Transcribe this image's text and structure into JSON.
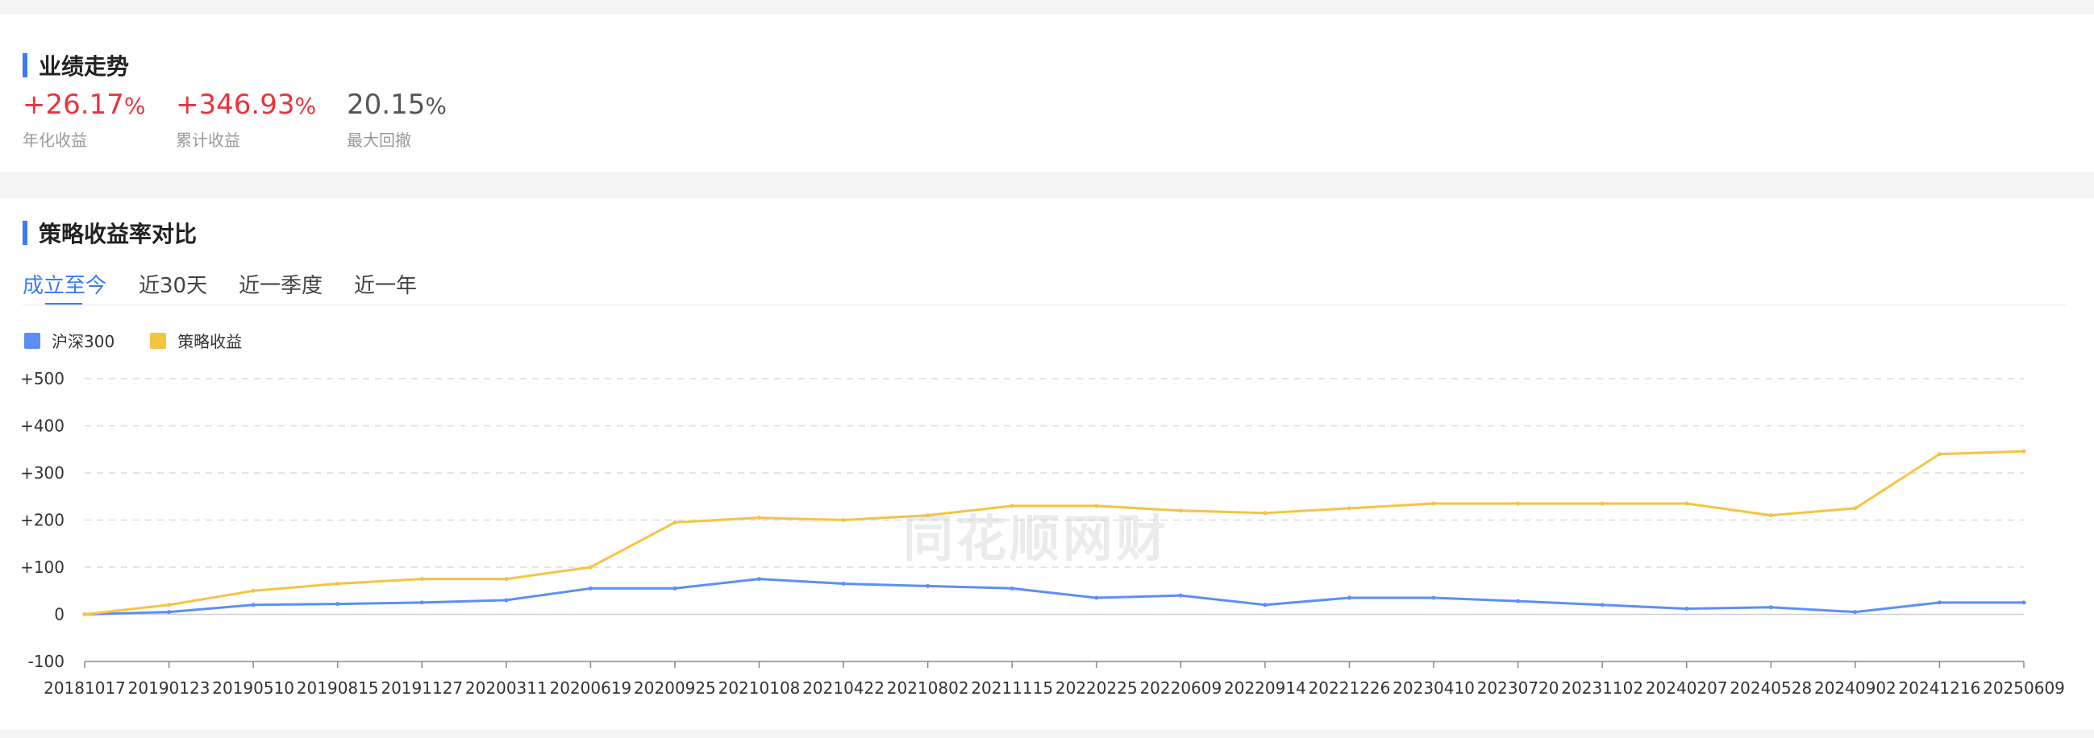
{
  "performance": {
    "title": "业绩走势",
    "stats": [
      {
        "value": "+26.17",
        "unit": "%",
        "label": "年化收益"
      },
      {
        "value": "+346.93",
        "unit": "%",
        "label": "累计收益"
      },
      {
        "value": "20.15",
        "unit": "%",
        "label": "最大回撤"
      }
    ]
  },
  "comparison": {
    "title": "策略收益率对比",
    "tabs": [
      "成立至今",
      "近30天",
      "近一季度",
      "近一年"
    ],
    "active_tab": 0,
    "watermark": "同花顺网财"
  },
  "colors": {
    "accent": "#3b7cf6",
    "positive": "#e8343c",
    "hs300": "#5b8ff9",
    "strategy": "#f6c343"
  },
  "chart_data": {
    "type": "line",
    "legend_position": "top-left",
    "grid": true,
    "ylim": [
      -100,
      500
    ],
    "yticks": [
      "+500",
      "+400",
      "+300",
      "+200",
      "+100",
      "0",
      "-100"
    ],
    "xtick_labels": [
      "20181017",
      "20190123",
      "20190510",
      "20190815",
      "20191127",
      "20200311",
      "20200619",
      "20200925",
      "20210108",
      "20210422",
      "20210802",
      "20211115",
      "20220225",
      "20220609",
      "20220914",
      "20221226",
      "20230410",
      "20230720",
      "20231102",
      "20240207",
      "20240528",
      "20240902",
      "20241216",
      "20250609"
    ],
    "x": [
      "20181017",
      "20190123",
      "20190510",
      "20190815",
      "20191127",
      "20200311",
      "20200619",
      "20200925",
      "20210108",
      "20210422",
      "20210802",
      "20211115",
      "20220225",
      "20220609",
      "20220914",
      "20221226",
      "20230410",
      "20230720",
      "20231102",
      "20240207",
      "20240528",
      "20240902",
      "20241216",
      "20250609"
    ],
    "series": [
      {
        "name": "沪深300",
        "values": [
          0,
          5,
          20,
          22,
          25,
          30,
          55,
          55,
          75,
          65,
          60,
          55,
          35,
          40,
          20,
          35,
          35,
          28,
          20,
          12,
          15,
          5,
          25,
          25
        ]
      },
      {
        "name": "策略收益",
        "values": [
          0,
          20,
          50,
          65,
          75,
          75,
          100,
          195,
          205,
          200,
          210,
          230,
          230,
          220,
          215,
          225,
          235,
          235,
          235,
          235,
          210,
          225,
          340,
          346
        ]
      }
    ]
  }
}
